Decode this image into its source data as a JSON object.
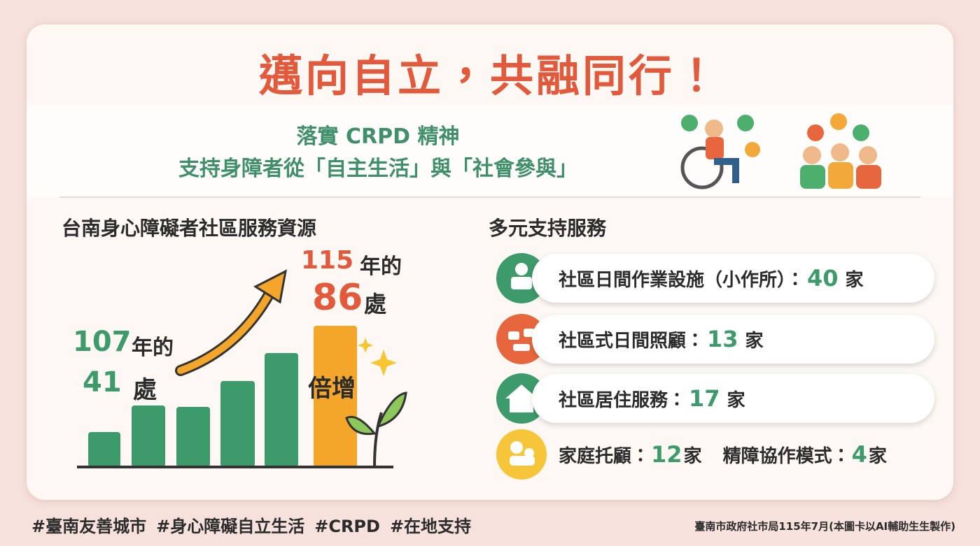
{
  "title": "邁向自立，共融同行！",
  "subtitle": {
    "line1": "落實 CRPD 精神",
    "line2": "支持身障者從「自主生活」與「社會參與」"
  },
  "left": {
    "heading": "台南身心障礙者社區服務資源",
    "start": {
      "year": 107,
      "year_suffix": "年的",
      "count": 41,
      "count_suffix": "處"
    },
    "end": {
      "year": 115,
      "year_suffix": "年的",
      "count": 86,
      "count_suffix": "處"
    },
    "growth_label": "倍增"
  },
  "right": {
    "heading": "多元支持服務",
    "rows": [
      [
        {
          "label": "社區日間作業設施（小作所）：",
          "count": 40,
          "unit": "家"
        }
      ],
      [
        {
          "label": "社區式日間照顧：",
          "count": 13,
          "unit": "家"
        }
      ],
      [
        {
          "label": "社區居住服務：",
          "count": 17,
          "unit": "家"
        }
      ],
      [
        {
          "label": "家庭托顧：",
          "count": 12,
          "unit": "家"
        },
        {
          "label": "精障協作模式：",
          "count": 4,
          "unit": "家"
        }
      ]
    ]
  },
  "hashtags": [
    "#臺南友善城市",
    "#身心障礙自立生活",
    "#CRPD",
    "#在地支持"
  ],
  "credit": "臺南市政府社市局115年7月(本圖卡以AI輔助生生製作)"
}
